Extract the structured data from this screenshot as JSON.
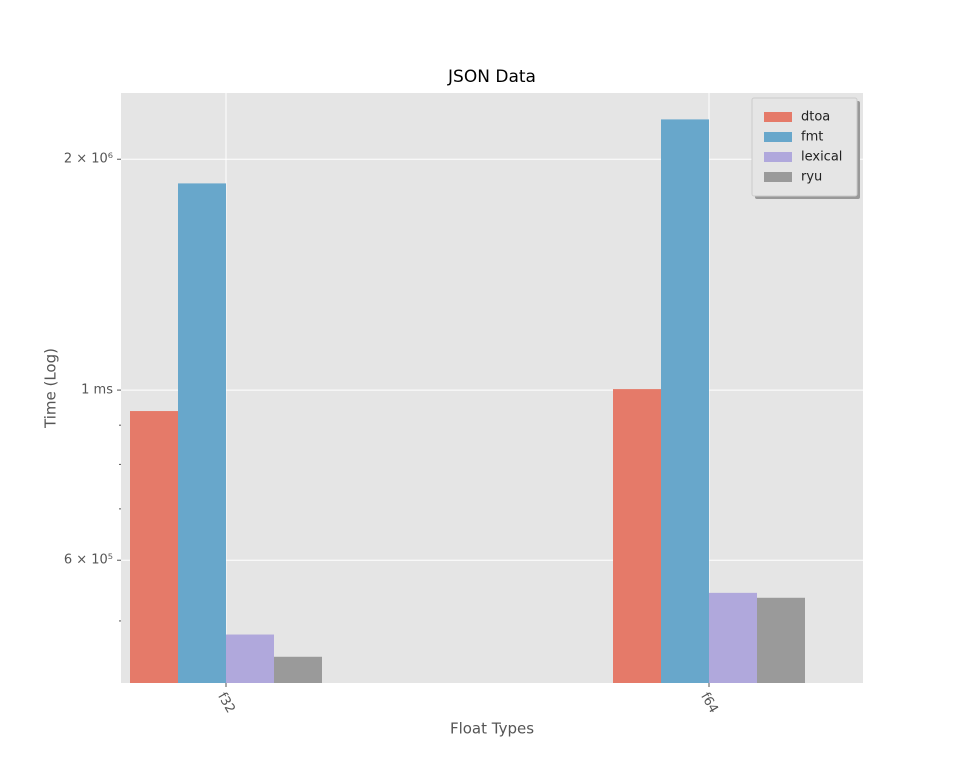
{
  "chart_data": {
    "type": "bar",
    "title": "JSON Data",
    "x_label": "Float Types",
    "y_label": "Time (Log)",
    "categories": [
      "f32",
      "f64"
    ],
    "series": [
      {
        "name": "dtoa",
        "color": "#e57a69",
        "values": [
          939000,
          1003000
        ]
      },
      {
        "name": "fmt",
        "color": "#68a7cb",
        "values": [
          1860000,
          2254000
        ]
      },
      {
        "name": "lexical",
        "color": "#b0a8dc",
        "values": [
          480000,
          544000
        ]
      },
      {
        "name": "ryu",
        "color": "#9a9a9a",
        "values": [
          449000,
          536000
        ]
      }
    ],
    "log_y": true,
    "ylim": [
      415000,
      2440000
    ],
    "yticks": [
      {
        "value": 600000,
        "label": "6 × 10⁵"
      },
      {
        "value": 1000000,
        "label": "1 ms"
      },
      {
        "value": 2000000,
        "label": "2 × 10⁶"
      }
    ],
    "minor_yticks": [
      500000,
      700000,
      800000,
      900000
    ],
    "grid": true,
    "legend": "upper right"
  }
}
